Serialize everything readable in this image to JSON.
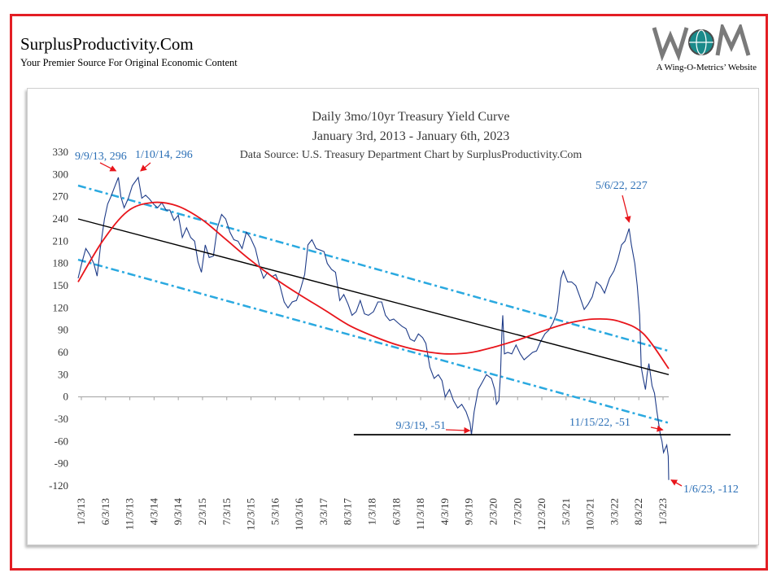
{
  "site": {
    "title": "SurplusProductivity.Com",
    "tagline": "Your Premier Source For Original Economic Content",
    "logo_caption": "A Wing-O-Metrics’ Website",
    "frame_color": "#e31e24"
  },
  "chart_data": {
    "type": "line",
    "title_lines": [
      "Daily 3mo/10yr Treasury Yield Curve",
      "January 3rd, 2013 - January 6th, 2023",
      "Data Source: U.S. Treasury Department     Chart by SurplusProductivity.Com"
    ],
    "xlabel": "",
    "ylabel": "",
    "ylim": [
      -120,
      330
    ],
    "y_ticks": [
      "330",
      "300",
      "270",
      "240",
      "210",
      "180",
      "150",
      "120",
      "90",
      "60",
      "30",
      "0",
      "-30",
      "-60",
      "-90",
      "-120"
    ],
    "x_ticks": [
      "1/3/13",
      "6/3/13",
      "11/3/13",
      "4/3/14",
      "9/3/14",
      "2/3/15",
      "7/3/15",
      "12/3/15",
      "5/3/16",
      "10/3/16",
      "3/3/17",
      "8/3/17",
      "1/3/18",
      "6/3/18",
      "11/3/18",
      "4/3/19",
      "9/3/19",
      "2/3/20",
      "7/3/20",
      "12/3/20",
      "5/3/21",
      "10/3/21",
      "3/3/22",
      "8/3/22",
      "1/3/23"
    ],
    "colors": {
      "series": "#1f3c88",
      "channel": "#2aa9e0",
      "cycle": "#e8151b",
      "trend": "#000000",
      "annotation": "#2b6fb6",
      "arrow": "#e8151b"
    },
    "series": [
      {
        "values": [
          [
            "2013-01-03",
            160
          ],
          [
            "2013-01-25",
            180
          ],
          [
            "2013-02-20",
            200
          ],
          [
            "2013-03-15",
            192
          ],
          [
            "2013-04-10",
            180
          ],
          [
            "2013-05-01",
            163
          ],
          [
            "2013-05-20",
            200
          ],
          [
            "2013-06-15",
            240
          ],
          [
            "2013-07-05",
            260
          ],
          [
            "2013-07-25",
            270
          ],
          [
            "2013-08-15",
            282
          ],
          [
            "2013-09-09",
            296
          ],
          [
            "2013-09-25",
            270
          ],
          [
            "2013-10-15",
            255
          ],
          [
            "2013-11-10",
            268
          ],
          [
            "2013-12-05",
            285
          ],
          [
            "2014-01-10",
            296
          ],
          [
            "2014-02-01",
            268
          ],
          [
            "2014-02-25",
            272
          ],
          [
            "2014-03-20",
            267
          ],
          [
            "2014-04-15",
            260
          ],
          [
            "2014-05-10",
            255
          ],
          [
            "2014-06-05",
            262
          ],
          [
            "2014-07-01",
            252
          ],
          [
            "2014-07-25",
            252
          ],
          [
            "2014-08-20",
            238
          ],
          [
            "2014-09-15",
            245
          ],
          [
            "2014-10-10",
            215
          ],
          [
            "2014-11-05",
            228
          ],
          [
            "2014-12-01",
            215
          ],
          [
            "2014-12-25",
            210
          ],
          [
            "2015-01-15",
            182
          ],
          [
            "2015-02-05",
            168
          ],
          [
            "2015-03-01",
            205
          ],
          [
            "2015-03-25",
            188
          ],
          [
            "2015-04-20",
            190
          ],
          [
            "2015-05-15",
            228
          ],
          [
            "2015-06-10",
            246
          ],
          [
            "2015-07-05",
            240
          ],
          [
            "2015-08-01",
            222
          ],
          [
            "2015-08-25",
            212
          ],
          [
            "2015-09-20",
            210
          ],
          [
            "2015-10-15",
            200
          ],
          [
            "2015-11-10",
            222
          ],
          [
            "2015-12-05",
            215
          ],
          [
            "2016-01-05",
            200
          ],
          [
            "2016-02-01",
            175
          ],
          [
            "2016-02-25",
            160
          ],
          [
            "2016-03-20",
            168
          ],
          [
            "2016-04-15",
            162
          ],
          [
            "2016-05-10",
            165
          ],
          [
            "2016-06-05",
            150
          ],
          [
            "2016-07-01",
            128
          ],
          [
            "2016-07-25",
            120
          ],
          [
            "2016-08-20",
            128
          ],
          [
            "2016-09-15",
            130
          ],
          [
            "2016-10-10",
            145
          ],
          [
            "2016-11-05",
            165
          ],
          [
            "2016-11-25",
            205
          ],
          [
            "2016-12-20",
            212
          ],
          [
            "2017-01-15",
            200
          ],
          [
            "2017-02-10",
            198
          ],
          [
            "2017-03-05",
            196
          ],
          [
            "2017-03-25",
            180
          ],
          [
            "2017-04-20",
            172
          ],
          [
            "2017-05-15",
            168
          ],
          [
            "2017-06-10",
            130
          ],
          [
            "2017-07-05",
            138
          ],
          [
            "2017-08-01",
            125
          ],
          [
            "2017-08-25",
            110
          ],
          [
            "2017-09-20",
            115
          ],
          [
            "2017-10-15",
            130
          ],
          [
            "2017-11-10",
            112
          ],
          [
            "2017-12-05",
            110
          ],
          [
            "2018-01-05",
            115
          ],
          [
            "2018-02-01",
            128
          ],
          [
            "2018-02-25",
            128
          ],
          [
            "2018-03-20",
            110
          ],
          [
            "2018-04-15",
            103
          ],
          [
            "2018-05-10",
            105
          ],
          [
            "2018-06-05",
            100
          ],
          [
            "2018-07-01",
            95
          ],
          [
            "2018-07-25",
            92
          ],
          [
            "2018-08-20",
            78
          ],
          [
            "2018-09-15",
            75
          ],
          [
            "2018-10-10",
            85
          ],
          [
            "2018-11-05",
            80
          ],
          [
            "2018-11-25",
            72
          ],
          [
            "2018-12-20",
            40
          ],
          [
            "2019-01-15",
            25
          ],
          [
            "2019-02-10",
            30
          ],
          [
            "2019-03-05",
            22
          ],
          [
            "2019-03-25",
            0
          ],
          [
            "2019-04-20",
            10
          ],
          [
            "2019-05-15",
            -5
          ],
          [
            "2019-06-10",
            -15
          ],
          [
            "2019-07-05",
            -10
          ],
          [
            "2019-08-01",
            -20
          ],
          [
            "2019-08-25",
            -35
          ],
          [
            "2019-09-03",
            -51
          ],
          [
            "2019-09-20",
            -20
          ],
          [
            "2019-10-15",
            10
          ],
          [
            "2019-11-10",
            20
          ],
          [
            "2019-12-05",
            30
          ],
          [
            "2020-01-05",
            25
          ],
          [
            "2020-01-25",
            10
          ],
          [
            "2020-02-05",
            -10
          ],
          [
            "2020-02-20",
            -5
          ],
          [
            "2020-03-01",
            30
          ],
          [
            "2020-03-10",
            90
          ],
          [
            "2020-03-15",
            110
          ],
          [
            "2020-03-25",
            58
          ],
          [
            "2020-04-15",
            60
          ],
          [
            "2020-05-10",
            58
          ],
          [
            "2020-06-05",
            70
          ],
          [
            "2020-07-01",
            58
          ],
          [
            "2020-07-25",
            50
          ],
          [
            "2020-08-20",
            55
          ],
          [
            "2020-09-15",
            60
          ],
          [
            "2020-10-10",
            62
          ],
          [
            "2020-11-05",
            75
          ],
          [
            "2020-12-01",
            85
          ],
          [
            "2020-12-25",
            90
          ],
          [
            "2021-01-20",
            100
          ],
          [
            "2021-02-15",
            115
          ],
          [
            "2021-03-10",
            160
          ],
          [
            "2021-03-25",
            170
          ],
          [
            "2021-04-20",
            155
          ],
          [
            "2021-05-15",
            155
          ],
          [
            "2021-06-10",
            150
          ],
          [
            "2021-07-05",
            135
          ],
          [
            "2021-08-01",
            118
          ],
          [
            "2021-08-25",
            125
          ],
          [
            "2021-09-20",
            135
          ],
          [
            "2021-10-15",
            155
          ],
          [
            "2021-11-10",
            150
          ],
          [
            "2021-12-05",
            140
          ],
          [
            "2022-01-05",
            160
          ],
          [
            "2022-02-01",
            170
          ],
          [
            "2022-02-25",
            185
          ],
          [
            "2022-03-20",
            205
          ],
          [
            "2022-04-10",
            210
          ],
          [
            "2022-05-06",
            227
          ],
          [
            "2022-05-20",
            205
          ],
          [
            "2022-06-10",
            180
          ],
          [
            "2022-06-25",
            150
          ],
          [
            "2022-07-10",
            110
          ],
          [
            "2022-07-20",
            40
          ],
          [
            "2022-08-01",
            25
          ],
          [
            "2022-08-15",
            10
          ],
          [
            "2022-08-25",
            30
          ],
          [
            "2022-09-05",
            45
          ],
          [
            "2022-09-15",
            30
          ],
          [
            "2022-09-25",
            15
          ],
          [
            "2022-10-10",
            5
          ],
          [
            "2022-10-25",
            -20
          ],
          [
            "2022-11-15",
            -51
          ],
          [
            "2022-11-25",
            -60
          ],
          [
            "2022-12-05",
            -75
          ],
          [
            "2022-12-15",
            -70
          ],
          [
            "2022-12-25",
            -65
          ],
          [
            "2023-01-03",
            -80
          ],
          [
            "2023-01-06",
            -112
          ]
        ]
      }
    ],
    "annotations": [
      {
        "text": "9/9/13, 296",
        "date": "2013-09-09",
        "value": 296
      },
      {
        "text": "1/10/14, 296",
        "date": "2014-01-10",
        "value": 296
      },
      {
        "text": "5/6/22, 227",
        "date": "2022-05-06",
        "value": 227
      },
      {
        "text": "9/3/19, -51",
        "date": "2019-09-03",
        "value": -51
      },
      {
        "text": "11/15/22, -51",
        "date": "2022-11-15",
        "value": -51
      },
      {
        "text": "1/6/23, -112",
        "date": "2023-01-06",
        "value": -112
      }
    ],
    "reference_lines": {
      "trend": [
        [
          "2013-01-03",
          240
        ],
        [
          "2023-01-06",
          30
        ]
      ],
      "channel_upper": [
        [
          "2013-01-03",
          285
        ],
        [
          "2023-01-06",
          62
        ]
      ],
      "channel_lower": [
        [
          "2013-01-03",
          185
        ],
        [
          "2023-01-06",
          -35
        ]
      ],
      "floor": [
        [
          "2017-09-05",
          -51
        ],
        [
          "2023-01-06",
          -51
        ]
      ],
      "cycle_fit": [
        [
          "2013-01-03",
          155
        ],
        [
          "2013-06-03",
          210
        ],
        [
          "2013-11-03",
          250
        ],
        [
          "2014-04-03",
          262
        ],
        [
          "2014-09-03",
          258
        ],
        [
          "2015-02-03",
          240
        ],
        [
          "2015-07-03",
          213
        ],
        [
          "2015-12-03",
          185
        ],
        [
          "2016-05-03",
          160
        ],
        [
          "2016-10-03",
          138
        ],
        [
          "2017-03-03",
          118
        ],
        [
          "2017-08-03",
          97
        ],
        [
          "2018-01-03",
          82
        ],
        [
          "2018-06-03",
          70
        ],
        [
          "2018-11-03",
          62
        ],
        [
          "2019-04-03",
          58
        ],
        [
          "2019-09-03",
          60
        ],
        [
          "2020-02-03",
          68
        ],
        [
          "2020-07-03",
          78
        ],
        [
          "2020-12-03",
          90
        ],
        [
          "2021-05-03",
          100
        ],
        [
          "2021-10-03",
          105
        ],
        [
          "2022-03-03",
          102
        ],
        [
          "2022-08-03",
          85
        ],
        [
          "2023-01-06",
          38
        ]
      ]
    }
  }
}
